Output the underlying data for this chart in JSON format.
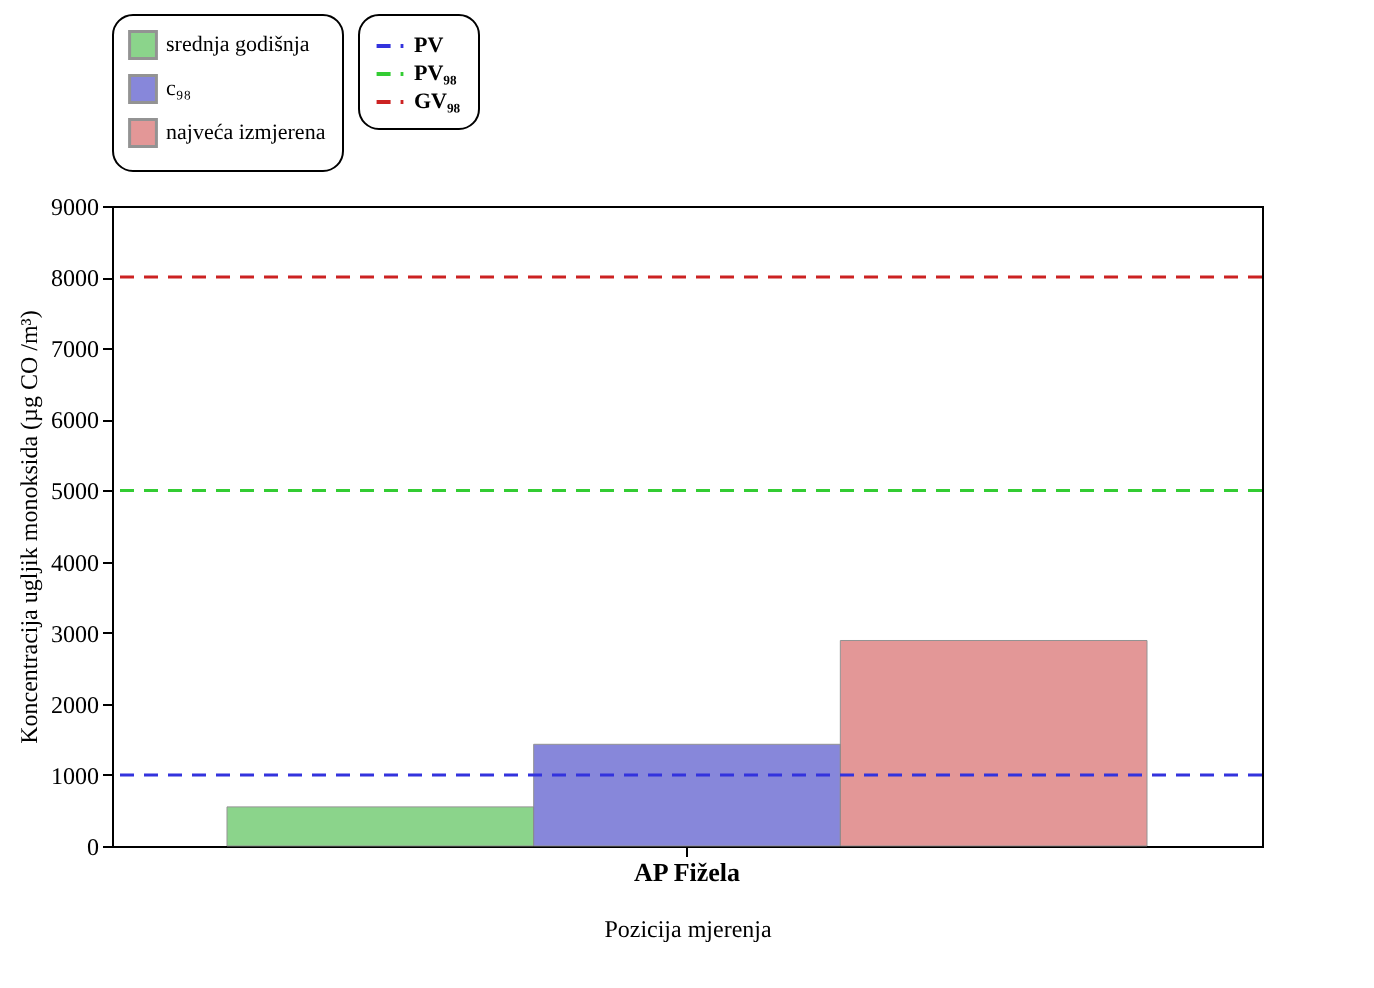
{
  "chart_data": {
    "type": "bar",
    "xlabel": "Pozicija mjerenja",
    "ylabel": "Koncentracija ugljik monoksida (µg CO /m³)",
    "categories": [
      "AP Fižela"
    ],
    "series": [
      {
        "name": "srednja godišnja",
        "color": "#7fd07f",
        "values": [
          550
        ]
      },
      {
        "name": "c₉₈",
        "color": "#7b7bd6",
        "values": [
          1430
        ]
      },
      {
        "name": "najveća izmjerena",
        "color": "#e08c8c",
        "values": [
          2890
        ]
      }
    ],
    "ylim": [
      0,
      9000
    ],
    "yticks": [
      0,
      1000,
      2000,
      3000,
      4000,
      5000,
      6000,
      7000,
      8000,
      9000
    ],
    "ref_lines": [
      {
        "axis": "y",
        "value": 1000,
        "label": "PV",
        "color": "#3333dd",
        "line_style": "dashed"
      },
      {
        "axis": "y",
        "value": 5000,
        "label": "PV₉₈",
        "color": "#33cc33",
        "line_style": "dashed"
      },
      {
        "axis": "y",
        "value": 8000,
        "label": "GV₉₈",
        "color": "#cc2222",
        "line_style": "dashed"
      }
    ],
    "grid": false,
    "legend": "top"
  }
}
